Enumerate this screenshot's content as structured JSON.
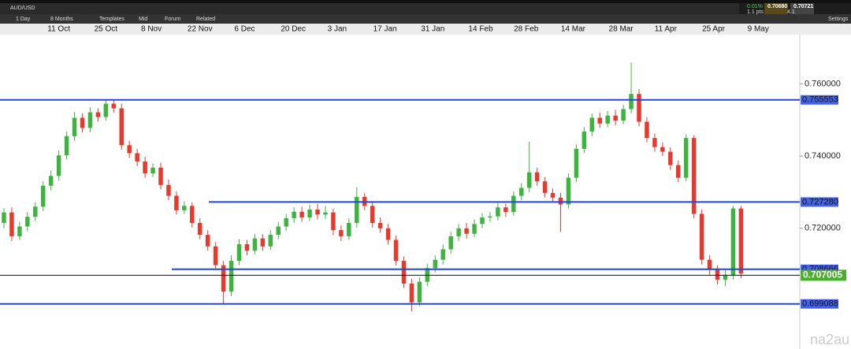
{
  "ui": {
    "symbol": "AUD/USD",
    "interval": "1 Day",
    "range": "8 Months",
    "buttons": [
      "Templates",
      "Mid",
      "Forum",
      "Related"
    ],
    "change": "0.01%",
    "spread": "1.1 pts",
    "bid": "0.70680",
    "ask": "0.70721",
    "spread_value": "4.1",
    "settings": "Settings",
    "watermark": "na2au"
  },
  "chart_data": {
    "type": "candlestick",
    "open": [
      0.7215,
      0.7244,
      0.7178,
      0.7205,
      0.7232,
      0.726,
      0.7318,
      0.7345,
      0.7402,
      0.7455,
      0.7506,
      0.7478,
      0.7521,
      0.7508,
      0.7545,
      0.7532,
      0.743,
      0.7408,
      0.7385,
      0.7352,
      0.7368,
      0.732,
      0.729,
      0.725,
      0.7262,
      0.7215,
      0.7182,
      0.715,
      0.7098,
      0.7025,
      0.711,
      0.7156,
      0.7138,
      0.7172,
      0.715,
      0.7182,
      0.7205,
      0.7228,
      0.7246,
      0.723,
      0.7252,
      0.7238,
      0.7244,
      0.7195,
      0.7178,
      0.7215,
      0.7287,
      0.7262,
      0.7215,
      0.72,
      0.7168,
      0.711,
      0.7047,
      0.6995,
      0.7052,
      0.709,
      0.7113,
      0.7142,
      0.7178,
      0.72,
      0.7185,
      0.7212,
      0.723,
      0.7233,
      0.7258,
      0.7245,
      0.729,
      0.7312,
      0.7355,
      0.733,
      0.7298,
      0.7285,
      0.7266,
      0.734,
      0.742,
      0.7468,
      0.7506,
      0.749,
      0.7512,
      0.7498,
      0.753,
      0.7572,
      0.7495,
      0.745,
      0.7425,
      0.7412,
      0.7375,
      0.734,
      0.745,
      0.724,
      0.7113,
      0.7085,
      0.7058,
      0.707,
      0.7255
    ],
    "high": [
      0.7256,
      0.7258,
      0.7218,
      0.7245,
      0.7272,
      0.733,
      0.736,
      0.7415,
      0.7468,
      0.7522,
      0.7518,
      0.7535,
      0.7532,
      0.7554,
      0.7556,
      0.7545,
      0.7442,
      0.742,
      0.7398,
      0.738,
      0.7382,
      0.7335,
      0.7302,
      0.7275,
      0.7272,
      0.7228,
      0.7195,
      0.7162,
      0.711,
      0.7125,
      0.717,
      0.7168,
      0.7185,
      0.7184,
      0.7195,
      0.7218,
      0.724,
      0.7258,
      0.726,
      0.7265,
      0.7268,
      0.7262,
      0.7255,
      0.7208,
      0.7228,
      0.7314,
      0.7298,
      0.7275,
      0.723,
      0.7212,
      0.718,
      0.7122,
      0.706,
      0.7065,
      0.7102,
      0.7125,
      0.7155,
      0.719,
      0.7212,
      0.7215,
      0.7225,
      0.7242,
      0.7245,
      0.727,
      0.7268,
      0.7302,
      0.7325,
      0.744,
      0.7368,
      0.7342,
      0.731,
      0.7298,
      0.7352,
      0.7432,
      0.748,
      0.7518,
      0.752,
      0.7525,
      0.7528,
      0.7542,
      0.7659,
      0.7585,
      0.7508,
      0.7462,
      0.7438,
      0.7424,
      0.7388,
      0.746,
      0.7458,
      0.7252,
      0.7125,
      0.7098,
      0.7085,
      0.7262,
      0.7262
    ],
    "low": [
      0.72,
      0.7165,
      0.7168,
      0.7192,
      0.722,
      0.7248,
      0.7305,
      0.7332,
      0.739,
      0.7442,
      0.7465,
      0.7466,
      0.7495,
      0.7498,
      0.752,
      0.7418,
      0.7395,
      0.7372,
      0.734,
      0.7342,
      0.7308,
      0.7278,
      0.7238,
      0.724,
      0.7202,
      0.717,
      0.7138,
      0.7085,
      0.6992,
      0.7012,
      0.7098,
      0.7125,
      0.7128,
      0.7138,
      0.714,
      0.717,
      0.7192,
      0.7215,
      0.7218,
      0.722,
      0.7225,
      0.7226,
      0.7182,
      0.7165,
      0.7168,
      0.7202,
      0.725,
      0.7202,
      0.7188,
      0.7155,
      0.7098,
      0.7035,
      0.697,
      0.6985,
      0.704,
      0.7078,
      0.71,
      0.713,
      0.7165,
      0.7172,
      0.7175,
      0.72,
      0.7218,
      0.7222,
      0.7232,
      0.7235,
      0.7278,
      0.73,
      0.7318,
      0.7285,
      0.7272,
      0.719,
      0.7255,
      0.7328,
      0.7408,
      0.7455,
      0.7478,
      0.748,
      0.7485,
      0.7488,
      0.7518,
      0.7482,
      0.7438,
      0.7412,
      0.74,
      0.7362,
      0.7328,
      0.733,
      0.7228,
      0.71,
      0.7072,
      0.7045,
      0.704,
      0.7058,
      0.7062
    ],
    "close": [
      0.7244,
      0.7178,
      0.7205,
      0.7232,
      0.726,
      0.7318,
      0.7345,
      0.7402,
      0.7455,
      0.7506,
      0.7478,
      0.7521,
      0.7508,
      0.7545,
      0.7532,
      0.743,
      0.7408,
      0.7385,
      0.7352,
      0.7368,
      0.732,
      0.729,
      0.725,
      0.7262,
      0.7215,
      0.7182,
      0.715,
      0.7098,
      0.7025,
      0.711,
      0.7156,
      0.7138,
      0.7172,
      0.715,
      0.7182,
      0.7205,
      0.7228,
      0.7246,
      0.723,
      0.7252,
      0.7238,
      0.7244,
      0.7195,
      0.7178,
      0.7215,
      0.7287,
      0.7262,
      0.7215,
      0.72,
      0.7168,
      0.711,
      0.7047,
      0.6995,
      0.7052,
      0.709,
      0.7113,
      0.7142,
      0.7178,
      0.72,
      0.7185,
      0.7212,
      0.723,
      0.7233,
      0.7258,
      0.7245,
      0.729,
      0.7312,
      0.7355,
      0.733,
      0.7298,
      0.7285,
      0.7266,
      0.734,
      0.742,
      0.7468,
      0.7506,
      0.749,
      0.7512,
      0.7498,
      0.753,
      0.7572,
      0.7495,
      0.745,
      0.7425,
      0.7412,
      0.7375,
      0.734,
      0.745,
      0.724,
      0.7113,
      0.7085,
      0.7058,
      0.707,
      0.7255,
      0.7075
    ],
    "up_color": "#3fb33f",
    "down_color": "#e53a2e",
    "xlim": [
      -0.5,
      101.5
    ],
    "xticks": [
      {
        "value": 7.0,
        "label": "11 Oct"
      },
      {
        "value": 13.0,
        "label": "25 Oct"
      },
      {
        "value": 18.8,
        "label": "8 Nov"
      },
      {
        "value": 25.0,
        "label": "22 Nov"
      },
      {
        "value": 30.7,
        "label": "6 Dec"
      },
      {
        "value": 36.9,
        "label": "20 Dec"
      },
      {
        "value": 42.5,
        "label": "3 Jan"
      },
      {
        "value": 48.6,
        "label": "17 Jan"
      },
      {
        "value": 54.7,
        "label": "31 Jan"
      },
      {
        "value": 60.8,
        "label": "14 Feb"
      },
      {
        "value": 66.6,
        "label": "28 Feb"
      },
      {
        "value": 72.6,
        "label": "14 Mar"
      },
      {
        "value": 78.7,
        "label": "28 Mar"
      },
      {
        "value": 84.4,
        "label": "11 Apr"
      },
      {
        "value": 90.5,
        "label": "25 Apr"
      },
      {
        "value": 96.2,
        "label": "9 May"
      }
    ],
    "ylim": [
      0.6866,
      0.7736
    ],
    "yticks": [
      {
        "value": 0.76,
        "label": "0.760000"
      },
      {
        "value": 0.74,
        "label": "0.740000"
      },
      {
        "value": 0.72,
        "label": "0.720000"
      }
    ],
    "levels": [
      0.755553,
      {
        "value": 0.72728,
        "label": "0.727280"
      },
      0.708666,
      0.699088
    ],
    "level_color": "#2446e0",
    "price_line": 0.707005,
    "price_color": "#4aae2e"
  }
}
